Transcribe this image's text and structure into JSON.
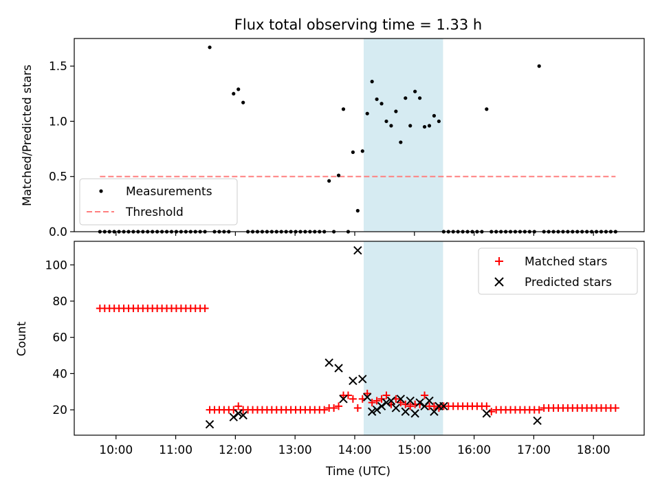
{
  "title": "Flux total observing time = 1.33 h",
  "x_tick_labels": [
    "10:00",
    "11:00",
    "12:00",
    "13:00",
    "14:00",
    "15:00",
    "16:00",
    "17:00",
    "18:00"
  ],
  "xlabel": "Time (UTC)",
  "colors": {
    "points": "#000000",
    "threshold": "#ff7f7f",
    "matched": "#ff0000",
    "predicted": "#000000",
    "span": "#add8e6"
  },
  "chart_data": [
    {
      "type": "scatter",
      "ylabel": "Matched/Predicted stars",
      "xlim": [
        9.3,
        18.85
      ],
      "ylim": [
        0,
        1.75
      ],
      "y_ticks": [
        0,
        0.5,
        1.0,
        1.5
      ],
      "y_tick_labels": [
        "0.0",
        "0.5",
        "1.0",
        "1.5"
      ],
      "grid": false,
      "legend_position": "lower-left",
      "shaded_span": [
        14.15,
        15.48
      ],
      "series": [
        {
          "name": "Measurements",
          "marker": "dot",
          "x": [
            9.73,
            9.81,
            9.89,
            9.97,
            10.05,
            10.13,
            10.21,
            10.29,
            10.37,
            10.45,
            10.53,
            10.61,
            10.69,
            10.77,
            10.85,
            10.93,
            11.01,
            11.09,
            11.17,
            11.25,
            11.33,
            11.41,
            11.49,
            11.57,
            11.65,
            11.73,
            11.81,
            11.89,
            11.97,
            12.05,
            12.13,
            12.21,
            12.29,
            12.37,
            12.45,
            12.53,
            12.61,
            12.69,
            12.77,
            12.85,
            12.93,
            13.01,
            13.09,
            13.17,
            13.25,
            13.33,
            13.41,
            13.49,
            13.57,
            13.65,
            13.73,
            13.81,
            13.89,
            13.97,
            14.05,
            14.13,
            14.21,
            14.29,
            14.37,
            14.45,
            14.53,
            14.61,
            14.69,
            14.77,
            14.85,
            14.93,
            15.01,
            15.09,
            15.17,
            15.25,
            15.33,
            15.41,
            15.49,
            15.57,
            15.65,
            15.73,
            15.81,
            15.89,
            15.97,
            16.05,
            16.13,
            16.21,
            16.29,
            16.37,
            16.45,
            16.53,
            16.61,
            16.69,
            16.77,
            16.85,
            16.93,
            17.01,
            17.09,
            17.17,
            17.25,
            17.33,
            17.41,
            17.49,
            17.57,
            17.65,
            17.73,
            17.81,
            17.89,
            17.97,
            18.05,
            18.13,
            18.21,
            18.29,
            18.37
          ],
          "y": [
            0,
            0,
            0,
            0,
            0,
            0,
            0,
            0,
            0,
            0,
            0,
            0,
            0,
            0,
            0,
            0,
            0,
            0,
            0,
            0,
            0,
            0,
            0,
            1.67,
            0,
            0,
            0,
            0,
            1.25,
            1.29,
            1.17,
            0,
            0,
            0,
            0,
            0,
            0,
            0,
            0,
            0,
            0,
            0,
            0,
            0,
            0,
            0,
            0,
            0,
            0.46,
            0,
            0.51,
            1.11,
            0,
            0.72,
            0.19,
            0.73,
            1.07,
            1.36,
            1.2,
            1.16,
            1.0,
            0.96,
            1.09,
            0.81,
            1.21,
            0.96,
            1.27,
            1.21,
            0.95,
            0.96,
            1.05,
            1.0,
            0,
            0,
            0,
            0,
            0,
            0,
            0,
            0,
            0,
            1.11,
            0,
            0,
            0,
            0,
            0,
            0,
            0,
            0,
            0,
            0,
            1.5,
            0,
            0,
            0,
            0,
            0,
            0,
            0,
            0,
            0,
            0,
            0,
            0,
            0,
            0,
            0,
            0
          ]
        },
        {
          "name": "Threshold",
          "style": "dashed",
          "x": [
            9.73,
            18.37
          ],
          "y": [
            0.5,
            0.5
          ]
        }
      ]
    },
    {
      "type": "scatter",
      "ylabel": "Count",
      "xlim": [
        9.3,
        18.85
      ],
      "ylim": [
        6,
        113
      ],
      "y_ticks": [
        20,
        40,
        60,
        80,
        100
      ],
      "y_tick_labels": [
        "20",
        "40",
        "60",
        "80",
        "100"
      ],
      "grid": false,
      "legend_position": "top-right",
      "shaded_span": [
        14.15,
        15.48
      ],
      "series": [
        {
          "name": "Matched stars",
          "marker": "plus",
          "x": [
            9.73,
            9.81,
            9.89,
            9.97,
            10.05,
            10.13,
            10.21,
            10.29,
            10.37,
            10.45,
            10.53,
            10.61,
            10.69,
            10.77,
            10.85,
            10.93,
            11.01,
            11.09,
            11.17,
            11.25,
            11.33,
            11.41,
            11.49,
            11.57,
            11.65,
            11.73,
            11.81,
            11.89,
            11.97,
            12.05,
            12.13,
            12.21,
            12.29,
            12.37,
            12.45,
            12.53,
            12.61,
            12.69,
            12.77,
            12.85,
            12.93,
            13.01,
            13.09,
            13.17,
            13.25,
            13.33,
            13.41,
            13.49,
            13.57,
            13.65,
            13.73,
            13.81,
            13.89,
            13.97,
            14.05,
            14.13,
            14.21,
            14.29,
            14.37,
            14.45,
            14.53,
            14.61,
            14.69,
            14.77,
            14.85,
            14.93,
            15.01,
            15.09,
            15.17,
            15.25,
            15.33,
            15.41,
            15.49,
            15.57,
            15.65,
            15.73,
            15.81,
            15.89,
            15.97,
            16.05,
            16.13,
            16.21,
            16.29,
            16.37,
            16.45,
            16.53,
            16.61,
            16.69,
            16.77,
            16.85,
            16.93,
            17.01,
            17.09,
            17.17,
            17.25,
            17.33,
            17.41,
            17.49,
            17.57,
            17.65,
            17.73,
            17.81,
            17.89,
            17.97,
            18.05,
            18.13,
            18.21,
            18.29,
            18.37
          ],
          "y": [
            76,
            76,
            76,
            76,
            76,
            76,
            76,
            76,
            76,
            76,
            76,
            76,
            76,
            76,
            76,
            76,
            76,
            76,
            76,
            76,
            76,
            76,
            76,
            20,
            20,
            20,
            20,
            20,
            20,
            22,
            20,
            20,
            20,
            20,
            20,
            20,
            20,
            20,
            20,
            20,
            20,
            20,
            20,
            20,
            20,
            20,
            20,
            20,
            21,
            21,
            22,
            28,
            28,
            26,
            21,
            26,
            29,
            24,
            25,
            26,
            28,
            23,
            26,
            24,
            23,
            22,
            23,
            23,
            28,
            22,
            22,
            21,
            22,
            22,
            22,
            22,
            22,
            22,
            22,
            22,
            22,
            22,
            19,
            20,
            20,
            20,
            20,
            20,
            20,
            20,
            20,
            20,
            20,
            21,
            21,
            21,
            21,
            21,
            21,
            21,
            21,
            21,
            21,
            21,
            21,
            21,
            21,
            21,
            21
          ]
        },
        {
          "name": "Predicted stars",
          "marker": "x",
          "x": [
            11.57,
            11.97,
            12.05,
            12.13,
            13.57,
            13.73,
            13.81,
            13.97,
            14.05,
            14.13,
            14.21,
            14.29,
            14.37,
            14.45,
            14.53,
            14.61,
            14.69,
            14.77,
            14.85,
            14.93,
            15.01,
            15.09,
            15.17,
            15.25,
            15.33,
            15.41,
            15.49,
            16.21,
            17.06
          ],
          "y": [
            12,
            16,
            18,
            17,
            46,
            43,
            26,
            36,
            108,
            37,
            27,
            19,
            20,
            22,
            24,
            25,
            21,
            26,
            19,
            25,
            18,
            24,
            22,
            25,
            19,
            22,
            22,
            18,
            14
          ]
        }
      ]
    }
  ]
}
